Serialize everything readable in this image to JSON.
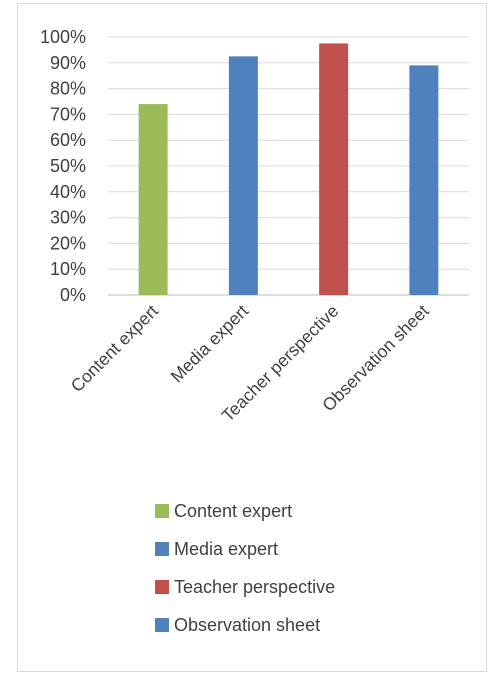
{
  "chart_data": {
    "type": "bar",
    "title": "",
    "xlabel": "",
    "ylabel": "",
    "categories": [
      "Content expert",
      "Media expert",
      "Teacher perspective",
      "Observation sheet"
    ],
    "values": [
      0.74,
      0.925,
      0.975,
      0.89
    ],
    "colors": [
      "#9BBB59",
      "#4F81BD",
      "#C0504D",
      "#4F81BD"
    ],
    "ylim": [
      0,
      1
    ],
    "yticks": [
      "0%",
      "10%",
      "20%",
      "30%",
      "40%",
      "50%",
      "60%",
      "70%",
      "80%",
      "90%",
      "100%"
    ],
    "grid": true,
    "legend_position": "bottom",
    "legend": [
      {
        "label": "Content expert",
        "color": "#9BBB59"
      },
      {
        "label": "Media expert",
        "color": "#4F81BD"
      },
      {
        "label": "Teacher perspective",
        "color": "#C0504D"
      },
      {
        "label": "Observation sheet",
        "color": "#4F81BD"
      }
    ]
  }
}
